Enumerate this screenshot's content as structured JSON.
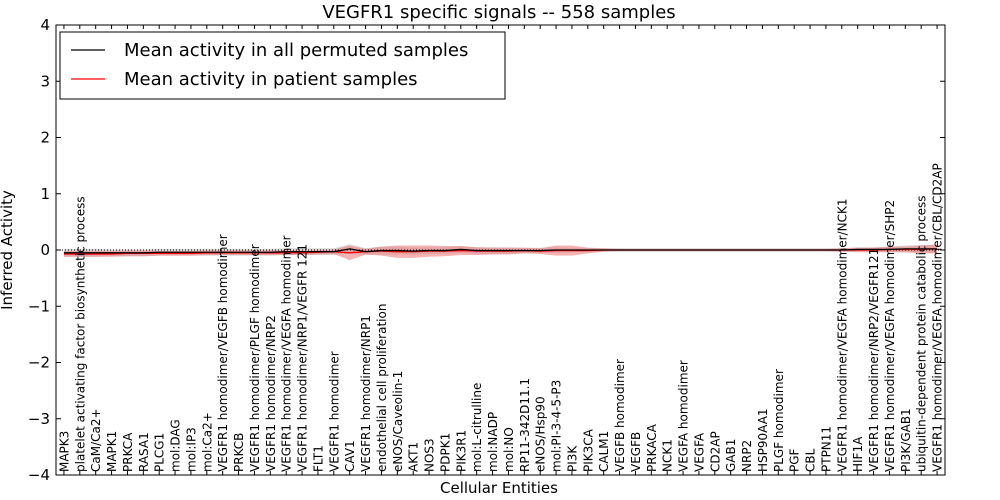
{
  "chart_data": {
    "type": "line",
    "title": "VEGFR1 specific signals -- 558 samples",
    "xlabel": "Cellular Entities",
    "ylabel": "Inferred Activity",
    "ylim": [
      -4,
      4
    ],
    "yticks": [
      -4,
      -3,
      -2,
      -1,
      0,
      1,
      2,
      3,
      4
    ],
    "ytick_labels": [
      "−4",
      "−3",
      "−2",
      "−1",
      "0",
      "1",
      "2",
      "3",
      "4"
    ],
    "legend_position": "top-left",
    "categories": [
      "MAPK3",
      "platelet activating factor biosynthetic process",
      "CaM/Ca2+",
      "MAPK1",
      "PRKCA",
      "RASA1",
      "PLCG1",
      "mol:DAG",
      "mol:IP3",
      "mol:Ca2+",
      "VEGFR1 homodimer/VEGFB homodimer",
      "PRKCB",
      "VEGFR1 homodimer/PLGF homodimer",
      "VEGFR1 homodimer/NRP2",
      "VEGFR1 homodimer/VEGFA homodimer",
      "VEGFR1 homodimer/NRP1/VEGFR 121",
      "FLT1",
      "VEGFR1 homodimer",
      "CAV1",
      "VEGFR1 homodimer/NRP1",
      "endothelial cell proliferation",
      "eNOS/Caveolin-1",
      "AKT1",
      "NOS3",
      "PDPK1",
      "PIK3R1",
      "mol:L-citrulline",
      "mol:NADP",
      "mol:NO",
      "RP11-342D11.1",
      "eNOS/Hsp90",
      "mol:PI-3-4-5-P3",
      "PI3K",
      "PIK3CA",
      "CALM1",
      "VEGFB homodimer",
      "VEGFB",
      "PRKACA",
      "NCK1",
      "VEGFA homodimer",
      "VEGFA",
      "CD2AP",
      "GAB1",
      "NRP2",
      "HSP90AA1",
      "PLGF homodimer",
      "PGF",
      "CBL",
      "PTPN11",
      "VEGFR1 homodimer/VEGFA homodimer/NCK1",
      "HIF1A",
      "VEGFR1 homodimer/NRP2/VEGFR121",
      "VEGFR1 homodimer/VEGFA homodimer/SHP2",
      "PI3K/GAB1",
      "ubiquitin-dependent protein catabolic process",
      "VEGFR1 homodimer/VEGFA homodimer/CBL/CD2AP"
    ],
    "series": [
      {
        "name": "Mean activity in all permuted samples",
        "color": "#000000",
        "band_color": "#c8c8c8",
        "values": [
          -0.05,
          -0.05,
          -0.05,
          -0.05,
          -0.05,
          -0.05,
          -0.04,
          -0.04,
          -0.04,
          -0.04,
          -0.04,
          -0.04,
          -0.04,
          -0.04,
          -0.03,
          -0.03,
          -0.03,
          -0.03,
          0.02,
          -0.03,
          -0.01,
          -0.01,
          -0.02,
          -0.01,
          -0.01,
          0.01,
          -0.01,
          -0.01,
          -0.01,
          -0.01,
          -0.01,
          0.0,
          0.0,
          0.0,
          0.0,
          0.0,
          0.0,
          0.0,
          0.0,
          0.0,
          0.0,
          0.0,
          0.0,
          0.0,
          0.0,
          0.0,
          0.0,
          0.0,
          0.0,
          0.0,
          0.01,
          0.01,
          0.01,
          0.02,
          0.02,
          0.02
        ],
        "band_halfwidth": [
          0.07,
          0.07,
          0.07,
          0.06,
          0.06,
          0.06,
          0.06,
          0.06,
          0.06,
          0.06,
          0.06,
          0.06,
          0.06,
          0.06,
          0.06,
          0.06,
          0.06,
          0.06,
          0.08,
          0.06,
          0.07,
          0.07,
          0.06,
          0.06,
          0.06,
          0.06,
          0.06,
          0.06,
          0.06,
          0.05,
          0.05,
          0.05,
          0.04,
          0.04,
          0.03,
          0.03,
          0.03,
          0.03,
          0.03,
          0.03,
          0.03,
          0.03,
          0.03,
          0.03,
          0.03,
          0.03,
          0.03,
          0.03,
          0.03,
          0.03,
          0.04,
          0.04,
          0.05,
          0.06,
          0.07,
          0.07
        ]
      },
      {
        "name": "Mean activity in patient samples",
        "color": "#ff0000",
        "band_color": "#f08080",
        "values": [
          -0.07,
          -0.07,
          -0.07,
          -0.07,
          -0.06,
          -0.06,
          -0.06,
          -0.06,
          -0.06,
          -0.05,
          -0.05,
          -0.05,
          -0.05,
          -0.05,
          -0.05,
          -0.05,
          -0.04,
          -0.03,
          -0.05,
          -0.03,
          -0.02,
          -0.03,
          -0.03,
          -0.02,
          -0.02,
          -0.01,
          -0.02,
          -0.02,
          -0.02,
          -0.01,
          -0.02,
          -0.01,
          -0.01,
          -0.01,
          0.0,
          0.0,
          0.0,
          0.0,
          0.0,
          0.0,
          0.0,
          0.0,
          0.0,
          0.0,
          0.0,
          0.0,
          0.0,
          0.0,
          0.0,
          0.0,
          0.0,
          0.0,
          0.01,
          0.01,
          0.01,
          0.02
        ],
        "band_halfwidth": [
          0.05,
          0.05,
          0.05,
          0.05,
          0.05,
          0.05,
          0.04,
          0.04,
          0.04,
          0.04,
          0.04,
          0.04,
          0.04,
          0.04,
          0.04,
          0.04,
          0.04,
          0.04,
          0.13,
          0.05,
          0.08,
          0.11,
          0.11,
          0.1,
          0.09,
          0.08,
          0.07,
          0.06,
          0.06,
          0.05,
          0.05,
          0.09,
          0.09,
          0.05,
          0.03,
          0.02,
          0.02,
          0.02,
          0.02,
          0.02,
          0.02,
          0.02,
          0.02,
          0.02,
          0.02,
          0.02,
          0.02,
          0.02,
          0.02,
          0.03,
          0.04,
          0.04,
          0.05,
          0.05,
          0.07,
          0.08
        ]
      }
    ],
    "reference_line": 0,
    "grid": false
  }
}
